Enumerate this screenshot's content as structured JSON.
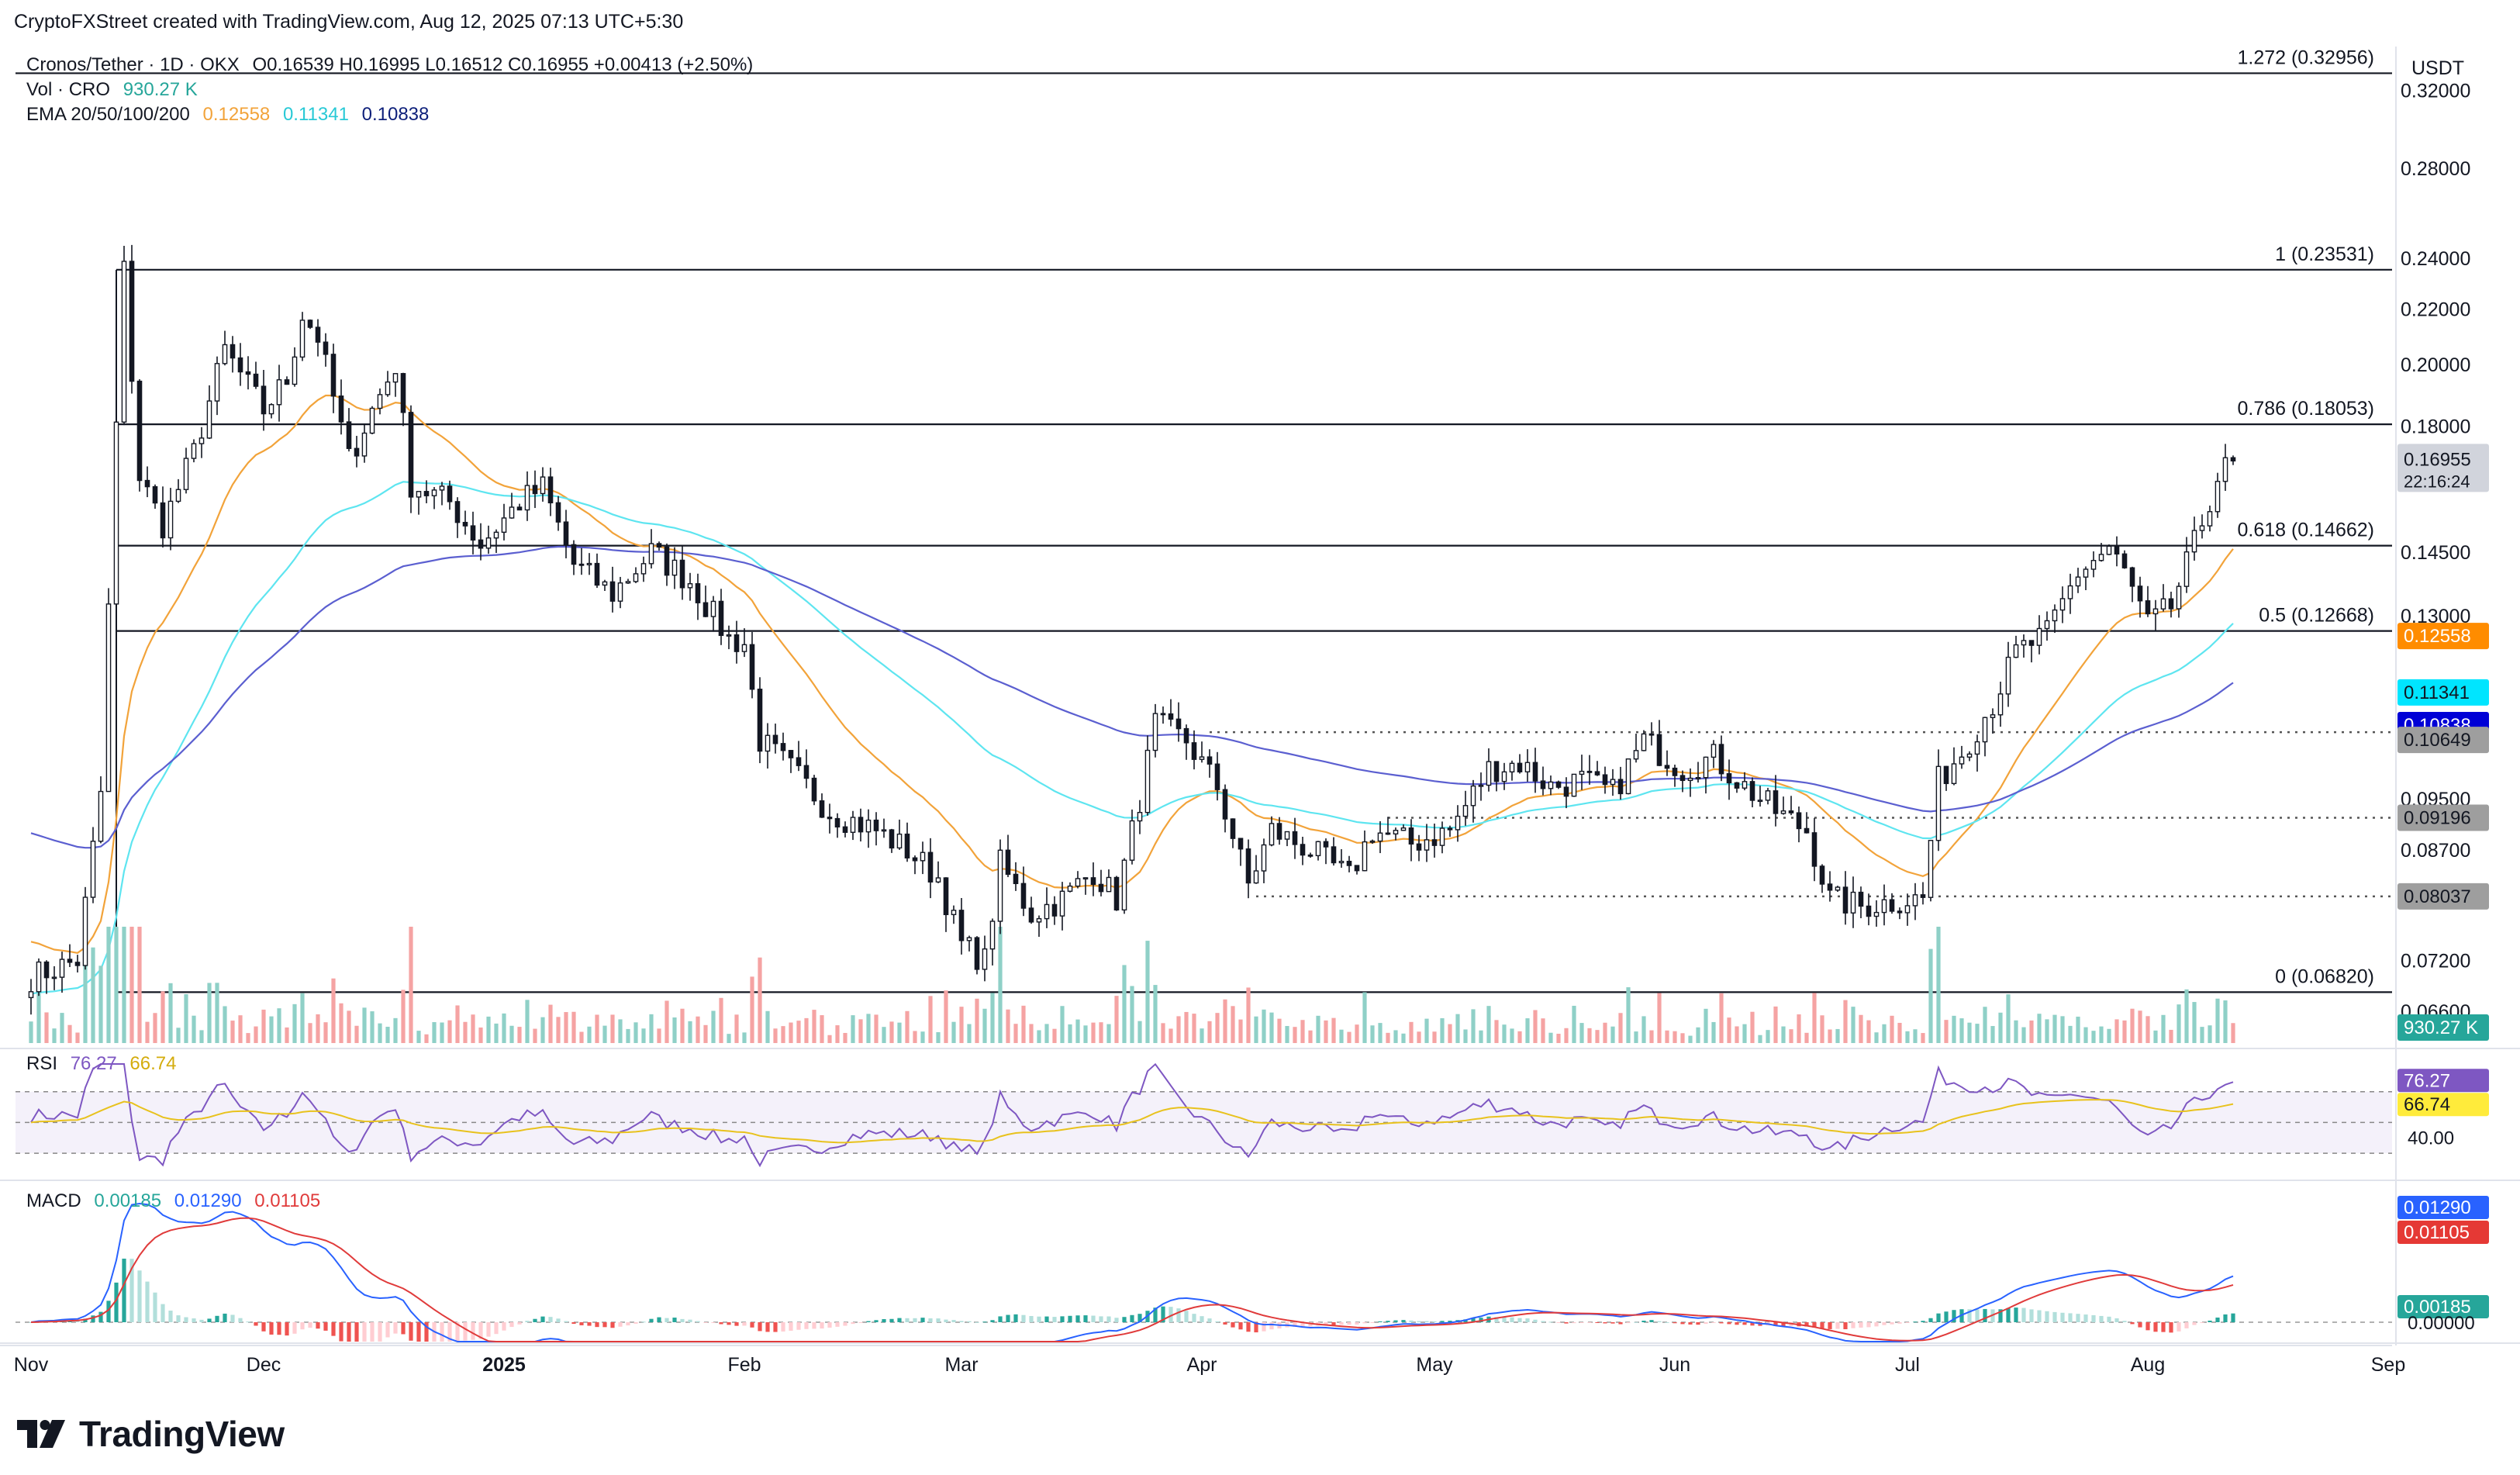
{
  "header": {
    "credit": "CryptoFXStreet created with TradingView.com, Aug 12, 2025 07:13 UTC+5:30",
    "symbol_line": "Cronos/Tether · 1D · OKX",
    "ohlc": "O0.16539 H0.16995 L0.16512 C0.16955 +0.00413 (+2.50%)",
    "vol_label": "Vol · CRO",
    "vol_value": "930.27 K",
    "ema_label": "EMA 20/50/100/200",
    "ema20": "0.12558",
    "ema50": "0.11341",
    "ema100": "0.10838"
  },
  "logo": {
    "text": "TradingView"
  },
  "colors": {
    "up": "#26a69a",
    "down": "#131722",
    "vol_up": "#8fd0c7",
    "vol_down": "#f5a3a3",
    "ema20": "#f2a33a",
    "ema50": "#5ee5f0",
    "ema100": "#5b5fd0",
    "ema200": "#0d1f7a",
    "rsi": "#7e57c2",
    "rsi_ma": "#e8c21d",
    "macd": "#2962ff",
    "signal": "#e03b3b",
    "hist_up": "#26a69a",
    "hist_up_light": "#b2dfdb",
    "hist_down": "#ef5350",
    "hist_down_light": "#ffcdd2"
  },
  "chart_data": {
    "type": "candlestick",
    "title": "Cronos/Tether · 1D · OKX",
    "currency": "USDT",
    "y_ticks": [
      "0.32000",
      "0.28000",
      "0.24000",
      "0.22000",
      "0.20000",
      "0.18000",
      "0.14500",
      "0.13000",
      "0.09500",
      "0.08700",
      "0.07200",
      "0.06600"
    ],
    "y_tick_values": [
      0.32,
      0.28,
      0.24,
      0.22,
      0.2,
      0.18,
      0.145,
      0.13,
      0.095,
      0.087,
      0.072,
      0.066
    ],
    "ylim": [
      0.0625,
      0.345
    ],
    "log_scale": true,
    "x_labels": [
      "Nov",
      "Dec",
      "2025",
      "Feb",
      "Mar",
      "Apr",
      "May",
      "Jun",
      "Jul",
      "Aug",
      "Sep"
    ],
    "x_label_dates": [
      "2024-11-01",
      "2024-12-01",
      "2025-01-01",
      "2025-02-01",
      "2025-03-01",
      "2025-04-01",
      "2025-05-01",
      "2025-06-01",
      "2025-07-01",
      "2025-08-01",
      "2025-09-01"
    ],
    "fib_levels": [
      {
        "label": "1.272 (0.32956)",
        "value": 0.32956
      },
      {
        "label": "1 (0.23531)",
        "value": 0.23531
      },
      {
        "label": "0.786 (0.18053)",
        "value": 0.18053
      },
      {
        "label": "0.618 (0.14662)",
        "value": 0.14662
      },
      {
        "label": "0.5 (0.12668)",
        "value": 0.12668
      },
      {
        "label": "0 (0.06820)",
        "value": 0.0682
      }
    ],
    "support_levels": [
      {
        "label": "0.10649",
        "value": 0.10649
      },
      {
        "label": "0.09196",
        "value": 0.09196
      },
      {
        "label": "0.08037",
        "value": 0.08037
      }
    ],
    "price_labels": {
      "last": "0.16955",
      "countdown": "22:16:24",
      "ema20": "0.12558",
      "ema50": "0.11341",
      "ema100": "0.10838",
      "volume": "930.27 K"
    },
    "ohlc_path": [
      [
        "2024-11-01",
        0.07
      ],
      [
        "2024-11-07",
        0.072
      ],
      [
        "2024-11-10",
        0.096
      ],
      [
        "2024-11-12",
        0.18
      ],
      [
        "2024-11-13",
        0.235
      ],
      [
        "2024-11-15",
        0.165
      ],
      [
        "2024-11-18",
        0.152
      ],
      [
        "2024-11-22",
        0.172
      ],
      [
        "2024-11-26",
        0.205
      ],
      [
        "2024-12-01",
        0.185
      ],
      [
        "2024-12-04",
        0.195
      ],
      [
        "2024-12-06",
        0.218
      ],
      [
        "2024-12-08",
        0.21
      ],
      [
        "2024-12-12",
        0.17
      ],
      [
        "2024-12-15",
        0.185
      ],
      [
        "2024-12-18",
        0.2
      ],
      [
        "2024-12-20",
        0.163
      ],
      [
        "2024-12-25",
        0.158
      ],
      [
        "2024-12-29",
        0.147
      ],
      [
        "2025-01-03",
        0.158
      ],
      [
        "2025-01-06",
        0.162
      ],
      [
        "2025-01-10",
        0.142
      ],
      [
        "2025-01-15",
        0.135
      ],
      [
        "2025-01-20",
        0.145
      ],
      [
        "2025-01-25",
        0.138
      ],
      [
        "2025-01-30",
        0.125
      ],
      [
        "2025-02-01",
        0.124
      ],
      [
        "2025-02-03",
        0.105
      ],
      [
        "2025-02-07",
        0.1
      ],
      [
        "2025-02-12",
        0.093
      ],
      [
        "2025-02-18",
        0.09
      ],
      [
        "2025-02-22",
        0.087
      ],
      [
        "2025-02-26",
        0.083
      ],
      [
        "2025-03-01",
        0.074
      ],
      [
        "2025-03-04",
        0.072
      ],
      [
        "2025-03-06",
        0.085
      ],
      [
        "2025-03-10",
        0.078
      ],
      [
        "2025-03-14",
        0.08
      ],
      [
        "2025-03-18",
        0.084
      ],
      [
        "2025-03-21",
        0.08
      ],
      [
        "2025-03-24",
        0.095
      ],
      [
        "2025-03-26",
        0.108
      ],
      [
        "2025-03-30",
        0.105
      ],
      [
        "2025-04-03",
        0.097
      ],
      [
        "2025-04-07",
        0.082
      ],
      [
        "2025-04-10",
        0.09
      ],
      [
        "2025-04-15",
        0.087
      ],
      [
        "2025-04-20",
        0.083
      ],
      [
        "2025-04-23",
        0.09
      ],
      [
        "2025-04-28",
        0.088
      ],
      [
        "2025-05-03",
        0.09
      ],
      [
        "2025-05-08",
        0.1
      ],
      [
        "2025-05-12",
        0.101
      ],
      [
        "2025-05-16",
        0.097
      ],
      [
        "2025-05-20",
        0.098
      ],
      [
        "2025-05-24",
        0.096
      ],
      [
        "2025-05-28",
        0.105
      ],
      [
        "2025-06-02",
        0.1
      ],
      [
        "2025-06-06",
        0.102
      ],
      [
        "2025-06-10",
        0.097
      ],
      [
        "2025-06-14",
        0.093
      ],
      [
        "2025-06-18",
        0.09
      ],
      [
        "2025-06-21",
        0.08
      ],
      [
        "2025-06-25",
        0.079
      ],
      [
        "2025-07-01",
        0.08
      ],
      [
        "2025-07-03",
        0.08
      ],
      [
        "2025-07-05",
        0.098
      ],
      [
        "2025-07-08",
        0.103
      ],
      [
        "2025-07-12",
        0.112
      ],
      [
        "2025-07-15",
        0.122
      ],
      [
        "2025-07-19",
        0.126
      ],
      [
        "2025-07-23",
        0.14
      ],
      [
        "2025-07-27",
        0.146
      ],
      [
        "2025-07-29",
        0.14
      ],
      [
        "2025-08-01",
        0.128
      ],
      [
        "2025-08-04",
        0.132
      ],
      [
        "2025-08-07",
        0.147
      ],
      [
        "2025-08-10",
        0.165
      ],
      [
        "2025-08-12",
        0.1696
      ]
    ],
    "rsi": {
      "label": "RSI",
      "value": "76.27",
      "ma": "66.74",
      "ticks": [
        "40.00"
      ],
      "bands": [
        70,
        30
      ],
      "mid": 50
    },
    "macd": {
      "label": "MACD",
      "hist": "0.00185",
      "macd": "0.01290",
      "signal": "0.01105",
      "ticks": [
        "0.00000"
      ]
    }
  }
}
